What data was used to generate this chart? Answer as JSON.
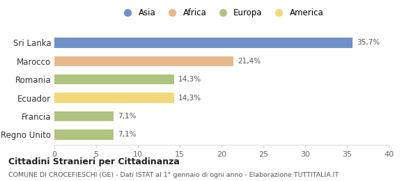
{
  "categories": [
    "Sri Lanka",
    "Marocco",
    "Romania",
    "Ecuador",
    "Francia",
    "Regno Unito"
  ],
  "values": [
    35.7,
    21.4,
    14.3,
    14.3,
    7.1,
    7.1
  ],
  "labels": [
    "35,7%",
    "21,4%",
    "14,3%",
    "14,3%",
    "7,1%",
    "7,1%"
  ],
  "bar_colors": [
    "#7090c8",
    "#e8b98a",
    "#afc47e",
    "#f2d878",
    "#afc47e",
    "#afc47e"
  ],
  "legend_entries": [
    "Asia",
    "Africa",
    "Europa",
    "America"
  ],
  "legend_colors": [
    "#7090c8",
    "#e8b98a",
    "#afc47e",
    "#f2d878"
  ],
  "xlim": [
    0,
    40
  ],
  "xticks": [
    0,
    5,
    10,
    15,
    20,
    25,
    30,
    35,
    40
  ],
  "title_main": "Cittadini Stranieri per Cittadinanza",
  "title_sub": "COMUNE DI CROCEFIESCHI (GE) - Dati ISTAT al 1° gennaio di ogni anno - Elaborazione TUTTITALIA.IT",
  "background_color": "#ffffff",
  "bar_height": 0.55
}
